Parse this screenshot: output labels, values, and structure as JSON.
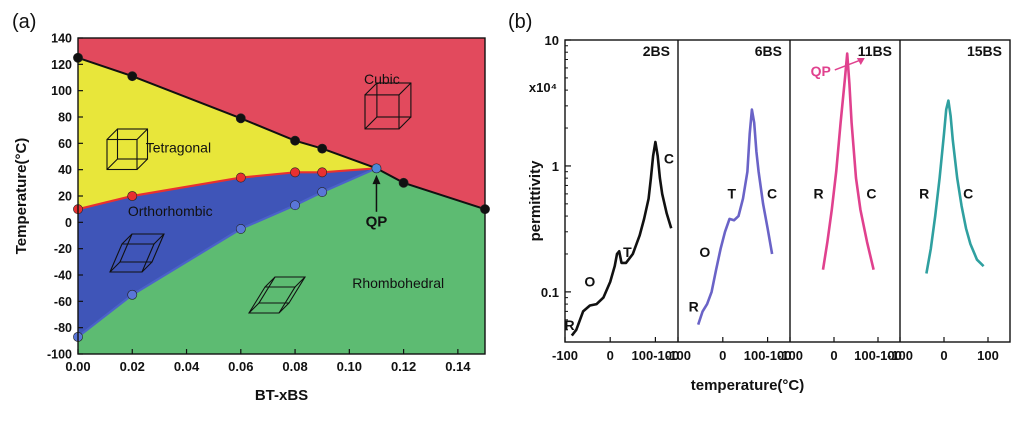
{
  "chart_data": [
    {
      "type": "area",
      "panel_label": "(a)",
      "xlabel": "BT-xBS",
      "ylabel": "Temperature(°C)",
      "xlim": [
        0,
        0.15
      ],
      "ylim": [
        -100,
        140
      ],
      "xticks": [
        "0.00",
        "0.02",
        "0.04",
        "0.06",
        "0.08",
        "0.10",
        "0.12",
        "0.14"
      ],
      "yticks": [
        "140",
        "120",
        "100",
        "80",
        "60",
        "40",
        "20",
        "0",
        "-20",
        "-40",
        "-60",
        "-80",
        "-100"
      ],
      "regions": [
        {
          "name": "Cubic",
          "color": "#e24a5d"
        },
        {
          "name": "Tetragonal",
          "color": "#e8e63a"
        },
        {
          "name": "Orthorhombic",
          "color": "#3f55b8"
        },
        {
          "name": "Rhombohedral",
          "color": "#5dbb72"
        }
      ],
      "annotation": "QP",
      "series": [
        {
          "color": "#111111",
          "points": [
            [
              0,
              125
            ],
            [
              0.02,
              111
            ],
            [
              0.06,
              79
            ],
            [
              0.08,
              62
            ],
            [
              0.09,
              56
            ],
            [
              0.11,
              41
            ],
            [
              0.12,
              30
            ],
            [
              0.15,
              10
            ]
          ]
        },
        {
          "color": "#e83030",
          "points": [
            [
              0,
              10
            ],
            [
              0.02,
              20
            ],
            [
              0.06,
              34
            ],
            [
              0.08,
              38
            ],
            [
              0.09,
              38
            ],
            [
              0.11,
              41
            ]
          ]
        },
        {
          "color": "#5a76d8",
          "points": [
            [
              0,
              -87
            ],
            [
              0.02,
              -55
            ],
            [
              0.06,
              -5
            ],
            [
              0.08,
              13
            ],
            [
              0.09,
              23
            ],
            [
              0.11,
              41
            ]
          ]
        }
      ]
    },
    {
      "type": "line",
      "panel_label": "(b)",
      "xlabel": "temperature(°C)",
      "ylabel": "permittivity",
      "yscale": "log",
      "ylim": [
        0.04,
        10
      ],
      "y_multiplier": "x10⁴",
      "yticks": [
        "10",
        "1",
        "0.1"
      ],
      "panels": [
        {
          "title": "2BS",
          "xlim": [
            -100,
            150
          ],
          "xticks": [
            "-100",
            "0",
            "100"
          ],
          "color": "#111111",
          "phase_labels": [
            {
              "t": "R",
              "x": -90,
              "y": 0.05
            },
            {
              "t": "O",
              "x": -45,
              "y": 0.11
            },
            {
              "t": "T",
              "x": 38,
              "y": 0.19
            },
            {
              "t": "C",
              "x": 130,
              "y": 1.05
            }
          ],
          "x": [
            -85,
            -75,
            -60,
            -45,
            -30,
            -15,
            0,
            10,
            15,
            20,
            25,
            35,
            50,
            65,
            75,
            85,
            90,
            95,
            100,
            105,
            110,
            115,
            125,
            135
          ],
          "y": [
            0.045,
            0.05,
            0.07,
            0.078,
            0.08,
            0.09,
            0.12,
            0.16,
            0.2,
            0.21,
            0.17,
            0.17,
            0.2,
            0.28,
            0.38,
            0.55,
            0.8,
            1.2,
            1.55,
            1.2,
            0.8,
            0.6,
            0.42,
            0.32
          ]
        },
        {
          "title": "6BS",
          "xlim": [
            -100,
            150
          ],
          "xticks": [
            "-100",
            "0",
            "100"
          ],
          "color": "#6a63c7",
          "phase_labels": [
            {
              "t": "R",
              "x": -65,
              "y": 0.07
            },
            {
              "t": "O",
              "x": -40,
              "y": 0.19
            },
            {
              "t": "T",
              "x": 20,
              "y": 0.55
            },
            {
              "t": "C",
              "x": 110,
              "y": 0.55
            }
          ],
          "x": [
            -55,
            -45,
            -35,
            -25,
            -15,
            -5,
            5,
            15,
            25,
            35,
            45,
            55,
            60,
            65,
            70,
            75,
            80,
            90,
            100,
            110
          ],
          "y": [
            0.055,
            0.07,
            0.08,
            0.1,
            0.15,
            0.22,
            0.3,
            0.38,
            0.37,
            0.4,
            0.55,
            0.9,
            1.8,
            2.8,
            2.2,
            1.3,
            0.9,
            0.5,
            0.32,
            0.2
          ]
        },
        {
          "title": "11BS",
          "xlim": [
            -100,
            150
          ],
          "xticks": [
            "-100",
            "0",
            "100"
          ],
          "color": "#e0418e",
          "phase_labels": [
            {
              "t": "R",
              "x": -35,
              "y": 0.55
            },
            {
              "t": "C",
              "x": 85,
              "y": 0.55
            }
          ],
          "annotation": {
            "t": "QP",
            "x": -30,
            "y": 6.0
          },
          "x": [
            -25,
            -15,
            -5,
            5,
            15,
            25,
            30,
            35,
            40,
            50,
            60,
            75,
            90
          ],
          "y": [
            0.15,
            0.25,
            0.45,
            0.9,
            2.2,
            5.0,
            7.8,
            4.5,
            2.2,
            0.8,
            0.45,
            0.25,
            0.15
          ]
        },
        {
          "title": "15BS",
          "xlim": [
            -100,
            150
          ],
          "xticks": [
            "-100",
            "0",
            "100"
          ],
          "color": "#2fa0a0",
          "phase_labels": [
            {
              "t": "R",
              "x": -45,
              "y": 0.55
            },
            {
              "t": "C",
              "x": 55,
              "y": 0.55
            }
          ],
          "x": [
            -40,
            -30,
            -20,
            -10,
            0,
            5,
            10,
            15,
            20,
            30,
            40,
            50,
            60,
            75,
            90
          ],
          "y": [
            0.14,
            0.22,
            0.4,
            0.8,
            1.8,
            2.8,
            3.3,
            2.5,
            1.6,
            0.8,
            0.48,
            0.32,
            0.24,
            0.18,
            0.16
          ]
        }
      ]
    }
  ]
}
